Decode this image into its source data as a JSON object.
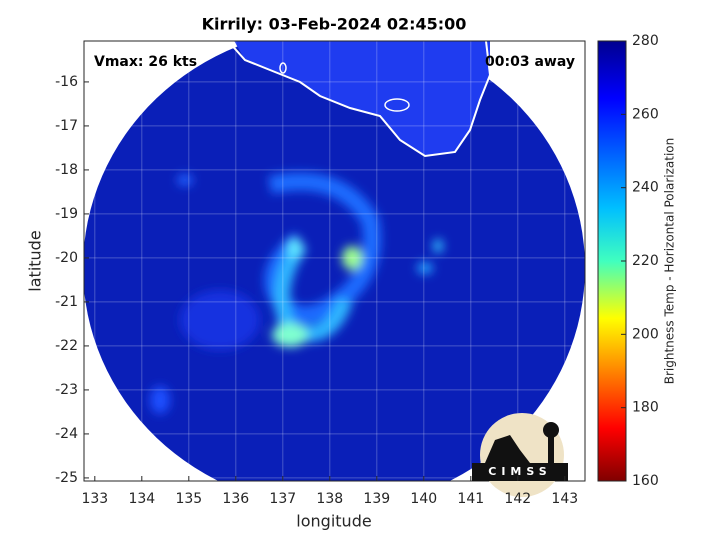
{
  "chart_data": {
    "type": "image",
    "title": "Kirrily: 03-Feb-2024 02:45:00",
    "annotations": [
      "Vmax: 26 kts",
      "00:03 away"
    ],
    "xlabel": "longitude",
    "ylabel": "latitude",
    "xlim": [
      132.77,
      143.43
    ],
    "xticks": [
      133,
      134,
      135,
      136,
      137,
      138,
      139,
      140,
      141,
      142,
      143
    ],
    "ylim": [
      -25.07,
      -15.07
    ],
    "yticks": [
      -16,
      -17,
      -18,
      -19,
      -20,
      -21,
      -22,
      -23,
      -24,
      -25
    ],
    "grid": true,
    "colorbar": {
      "label": "Brightness Temp - Horizontal Polarization",
      "lim": [
        160,
        280
      ],
      "ticks": [
        160,
        180,
        200,
        220,
        240,
        260,
        280
      ]
    },
    "logo": "CIMSS"
  }
}
